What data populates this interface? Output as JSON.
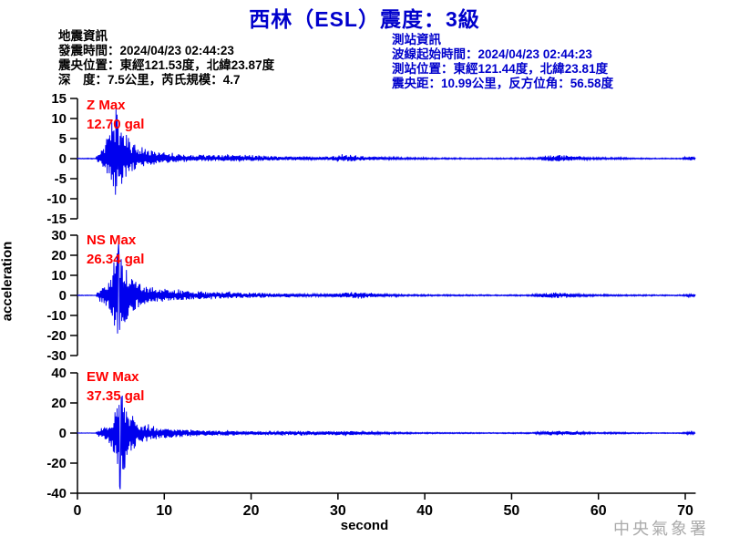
{
  "title": "西林（ESL）震度：3級",
  "quake_info": {
    "heading": "地震資訊",
    "origin_time": "發震時間：2024/04/23 02:44:23",
    "epicenter": "震央位置：東經121.53度，北緯23.87度",
    "depth_magnitude": "深　度：7.5公里，芮氏規模：4.7"
  },
  "station_info": {
    "heading": "測站資訊",
    "trace_start_time": "波線起始時間：2024/04/23 02:44:23",
    "station_location": "測站位置：東經121.44度，北緯23.81度",
    "distance_azimuth": "震央距：10.99公里，反方位角：56.58度"
  },
  "watermark": "中央氣象署",
  "colors": {
    "title_blue": "#0000cc",
    "station_info_blue": "#0000cc",
    "trace_blue": "#0000ee",
    "max_label_red": "#ff0000",
    "axis_black": "#000000",
    "watermark_gray": "#aaaaaa"
  },
  "chart_data": {
    "type": "line",
    "xlabel": "second",
    "ylabel": "acceleration",
    "x_ticks": [
      0,
      10,
      20,
      30,
      40,
      50,
      60,
      70
    ],
    "x_range": [
      0,
      71.2
    ],
    "series": [
      {
        "name": "Z",
        "label": "Z Max",
        "max_label": "12.70 gal",
        "max_gal": 12.7,
        "peak_time": 4.4,
        "peak_sign": 1,
        "ylim": [
          -15,
          15
        ],
        "y_ticks": [
          15,
          10,
          5,
          0,
          -5,
          -10,
          -15
        ],
        "envelope": [
          [
            0,
            0.12
          ],
          [
            2.1,
            0.12
          ],
          [
            2.3,
            1.2
          ],
          [
            2.8,
            2.5
          ],
          [
            3.2,
            4
          ],
          [
            3.6,
            6.5
          ],
          [
            4,
            9
          ],
          [
            4.4,
            12.7
          ],
          [
            4.8,
            10
          ],
          [
            5.2,
            8.5
          ],
          [
            5.6,
            7
          ],
          [
            6,
            5
          ],
          [
            6.5,
            4
          ],
          [
            7,
            3.2
          ],
          [
            8,
            2.4
          ],
          [
            9,
            2
          ],
          [
            10,
            1.7
          ],
          [
            11,
            1.4
          ],
          [
            12,
            1.2
          ],
          [
            14,
            1
          ],
          [
            16,
            0.9
          ],
          [
            17,
            1.1
          ],
          [
            19,
            1
          ],
          [
            21,
            0.8
          ],
          [
            23,
            0.6
          ],
          [
            25,
            0.5
          ],
          [
            27,
            0.45
          ],
          [
            29,
            0.5
          ],
          [
            30,
            0.9
          ],
          [
            31.5,
            1
          ],
          [
            33,
            0.6
          ],
          [
            35,
            0.4
          ],
          [
            37,
            0.3
          ],
          [
            39,
            0.25
          ],
          [
            42,
            0.2
          ],
          [
            46,
            0.18
          ],
          [
            50,
            0.18
          ],
          [
            53,
            0.25
          ],
          [
            54,
            0.8
          ],
          [
            55.5,
            1
          ],
          [
            57,
            0.7
          ],
          [
            58.5,
            0.4
          ],
          [
            60,
            0.3
          ],
          [
            62,
            0.25
          ],
          [
            64,
            0.2
          ],
          [
            67,
            0.15
          ],
          [
            69.5,
            0.15
          ],
          [
            70.2,
            0.5
          ],
          [
            70.8,
            0.55
          ],
          [
            71.2,
            0.25
          ]
        ]
      },
      {
        "name": "NS",
        "label": "NS Max",
        "max_label": "26.34 gal",
        "max_gal": 26.34,
        "peak_time": 4.7,
        "peak_sign": 1,
        "ylim": [
          -30,
          30
        ],
        "y_ticks": [
          30,
          20,
          10,
          0,
          -10,
          -20,
          -30
        ],
        "envelope": [
          [
            0,
            0.15
          ],
          [
            2.1,
            0.15
          ],
          [
            2.3,
            1.5
          ],
          [
            2.8,
            3.5
          ],
          [
            3.2,
            6
          ],
          [
            3.6,
            9
          ],
          [
            4,
            14
          ],
          [
            4.7,
            26.3
          ],
          [
            5.1,
            20
          ],
          [
            5.5,
            15
          ],
          [
            6,
            10
          ],
          [
            6.5,
            8
          ],
          [
            7,
            6.5
          ],
          [
            8,
            5
          ],
          [
            9,
            4
          ],
          [
            10,
            3.3
          ],
          [
            11,
            2.8
          ],
          [
            12,
            2.4
          ],
          [
            14,
            2
          ],
          [
            16,
            1.7
          ],
          [
            17,
            1.8
          ],
          [
            19,
            1.5
          ],
          [
            21,
            1.2
          ],
          [
            23,
            1
          ],
          [
            25,
            0.8
          ],
          [
            27,
            0.7
          ],
          [
            29,
            0.8
          ],
          [
            30,
            1
          ],
          [
            31.5,
            1.6
          ],
          [
            32.5,
            1.8
          ],
          [
            34,
            1
          ],
          [
            36,
            0.6
          ],
          [
            38,
            0.45
          ],
          [
            40,
            0.4
          ],
          [
            44,
            0.32
          ],
          [
            48,
            0.3
          ],
          [
            52,
            0.35
          ],
          [
            53.5,
            1
          ],
          [
            55,
            1.5
          ],
          [
            56.5,
            1.1
          ],
          [
            58,
            0.6
          ],
          [
            60,
            0.45
          ],
          [
            62,
            0.4
          ],
          [
            64,
            0.35
          ],
          [
            67,
            0.28
          ],
          [
            69.5,
            0.28
          ],
          [
            70.3,
            0.8
          ],
          [
            70.9,
            0.9
          ],
          [
            71.2,
            0.4
          ]
        ]
      },
      {
        "name": "EW",
        "label": "EW Max",
        "max_label": "37.35 gal",
        "max_gal": 37.35,
        "peak_time": 4.9,
        "peak_sign": -1,
        "ylim": [
          -40,
          40
        ],
        "y_ticks": [
          40,
          20,
          0,
          -20,
          -40
        ],
        "envelope": [
          [
            0,
            0.15
          ],
          [
            2.1,
            0.15
          ],
          [
            2.3,
            1.8
          ],
          [
            2.8,
            4
          ],
          [
            3.2,
            6
          ],
          [
            3.6,
            8
          ],
          [
            4,
            12
          ],
          [
            4.5,
            20
          ],
          [
            4.9,
            37.35
          ],
          [
            5.3,
            28
          ],
          [
            5.7,
            18
          ],
          [
            6.2,
            12
          ],
          [
            6.8,
            9
          ],
          [
            7.5,
            6.5
          ],
          [
            8.5,
            5
          ],
          [
            9.5,
            3.8
          ],
          [
            10.5,
            3.2
          ],
          [
            12,
            2.6
          ],
          [
            14,
            2.1
          ],
          [
            16,
            1.8
          ],
          [
            17,
            1.9
          ],
          [
            19,
            1.5
          ],
          [
            21,
            1.3
          ],
          [
            23,
            1.4
          ],
          [
            25,
            1.5
          ],
          [
            26.5,
            1.6
          ],
          [
            28,
            1.3
          ],
          [
            30,
            1.5
          ],
          [
            31.5,
            1.6
          ],
          [
            33,
            1.2
          ],
          [
            35,
            0.8
          ],
          [
            37,
            0.6
          ],
          [
            39,
            0.5
          ],
          [
            42,
            0.4
          ],
          [
            46,
            0.38
          ],
          [
            50,
            0.38
          ],
          [
            52.5,
            0.5
          ],
          [
            54,
            1.4
          ],
          [
            55.5,
            1.7
          ],
          [
            57,
            1.2
          ],
          [
            58.5,
            0.7
          ],
          [
            60,
            0.5
          ],
          [
            62,
            0.6
          ],
          [
            64,
            0.45
          ],
          [
            67,
            0.35
          ],
          [
            69.5,
            0.3
          ],
          [
            70.3,
            0.9
          ],
          [
            70.9,
            1
          ],
          [
            71.2,
            0.45
          ]
        ]
      }
    ]
  }
}
